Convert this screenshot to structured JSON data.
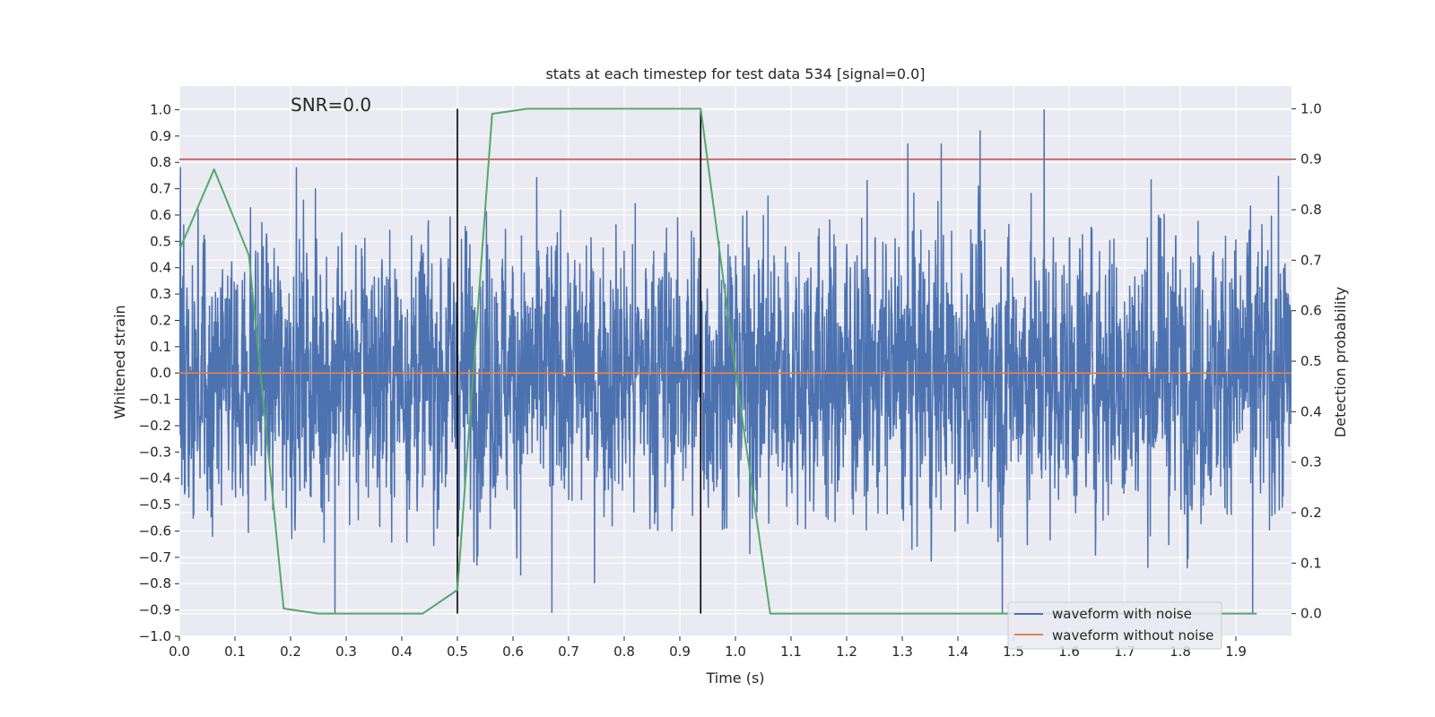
{
  "chart_data": {
    "type": "line",
    "title": "stats at each timestep for test data 534 [signal=0.0]",
    "annotation": "SNR=0.0",
    "xlabel": "Time (s)",
    "ylabel": "Whitened strain",
    "ylabel_right": "Detection probability",
    "xlim": [
      0.0,
      2.0
    ],
    "ylim": [
      -1.0,
      1.09
    ],
    "ylim_right": [
      -0.045,
      1.045
    ],
    "x_ticks": [
      "0.0",
      "0.1",
      "0.2",
      "0.3",
      "0.4",
      "0.5",
      "0.6",
      "0.7",
      "0.8",
      "0.9",
      "1.0",
      "1.1",
      "1.2",
      "1.3",
      "1.4",
      "1.5",
      "1.6",
      "1.7",
      "1.8",
      "1.9"
    ],
    "y_ticks": [
      "1.0",
      "0.9",
      "0.8",
      "0.7",
      "0.6",
      "0.5",
      "0.4",
      "0.3",
      "0.2",
      "0.1",
      "0.0",
      "−0.1",
      "−0.2",
      "−0.3",
      "−0.4",
      "−0.5",
      "−0.6",
      "−0.7",
      "−0.8",
      "−0.9",
      "−1.0"
    ],
    "y_ticks_right": [
      "1.0",
      "0.9",
      "0.8",
      "0.7",
      "0.6",
      "0.5",
      "0.4",
      "0.3",
      "0.2",
      "0.1",
      "0.0"
    ],
    "grid": true,
    "legend": {
      "placement": "lower-right",
      "entries": [
        {
          "label": "waveform with noise",
          "color": "#4c72b0"
        },
        {
          "label": "waveform without noise",
          "color": "#dd8452"
        }
      ]
    },
    "series": [
      {
        "name": "waveform with noise",
        "axis": "left",
        "color": "#4c72b0",
        "sample_rate_hz": 2048,
        "duration_s": 2.0,
        "approx_range": [
          -0.91,
          1.0
        ],
        "notable_peaks": [
          {
            "x": 0.28,
            "y": -0.91
          },
          {
            "x": 0.67,
            "y": -0.91
          },
          {
            "x": 1.31,
            "y": 0.87
          },
          {
            "x": 1.37,
            "y": 0.87
          },
          {
            "x": 1.44,
            "y": 0.92
          },
          {
            "x": 1.48,
            "y": -0.91
          },
          {
            "x": 1.555,
            "y": 1.0
          },
          {
            "x": 1.93,
            "y": -0.91
          }
        ]
      },
      {
        "name": "waveform without noise",
        "axis": "left",
        "color": "#dd8452",
        "x": [
          0.0,
          2.0
        ],
        "y": [
          0.0,
          0.0
        ]
      },
      {
        "axis": "right",
        "color": "#55a868",
        "x": [
          0.0,
          0.0625,
          0.125,
          0.1875,
          0.25,
          0.3125,
          0.375,
          0.4375,
          0.5,
          0.5625,
          0.625,
          0.6875,
          0.75,
          0.8125,
          0.875,
          0.9375,
          1.0,
          1.0625,
          1.125,
          1.1875,
          1.25,
          1.3125,
          1.375,
          1.4375,
          1.5,
          1.5625,
          1.625,
          1.6875,
          1.75,
          1.8125,
          1.875,
          1.9375
        ],
        "y": [
          0.72,
          0.88,
          0.71,
          0.01,
          0.0,
          0.0,
          0.0,
          0.0,
          0.047,
          0.99,
          1.0,
          1.0,
          1.0,
          1.0,
          1.0,
          1.0,
          0.48,
          0.0,
          0.0,
          0.0,
          0.0,
          0.0,
          0.0,
          0.0,
          0.0,
          0.0,
          0.0,
          0.0,
          0.0,
          0.0,
          0.0,
          0.0
        ]
      }
    ],
    "threshold_line": {
      "axis": "right",
      "y": 0.9,
      "color": "#c44e52"
    },
    "vertical_lines": [
      {
        "x": 0.5,
        "color": "#000000"
      },
      {
        "x": 0.9375,
        "color": "#000000"
      }
    ]
  }
}
